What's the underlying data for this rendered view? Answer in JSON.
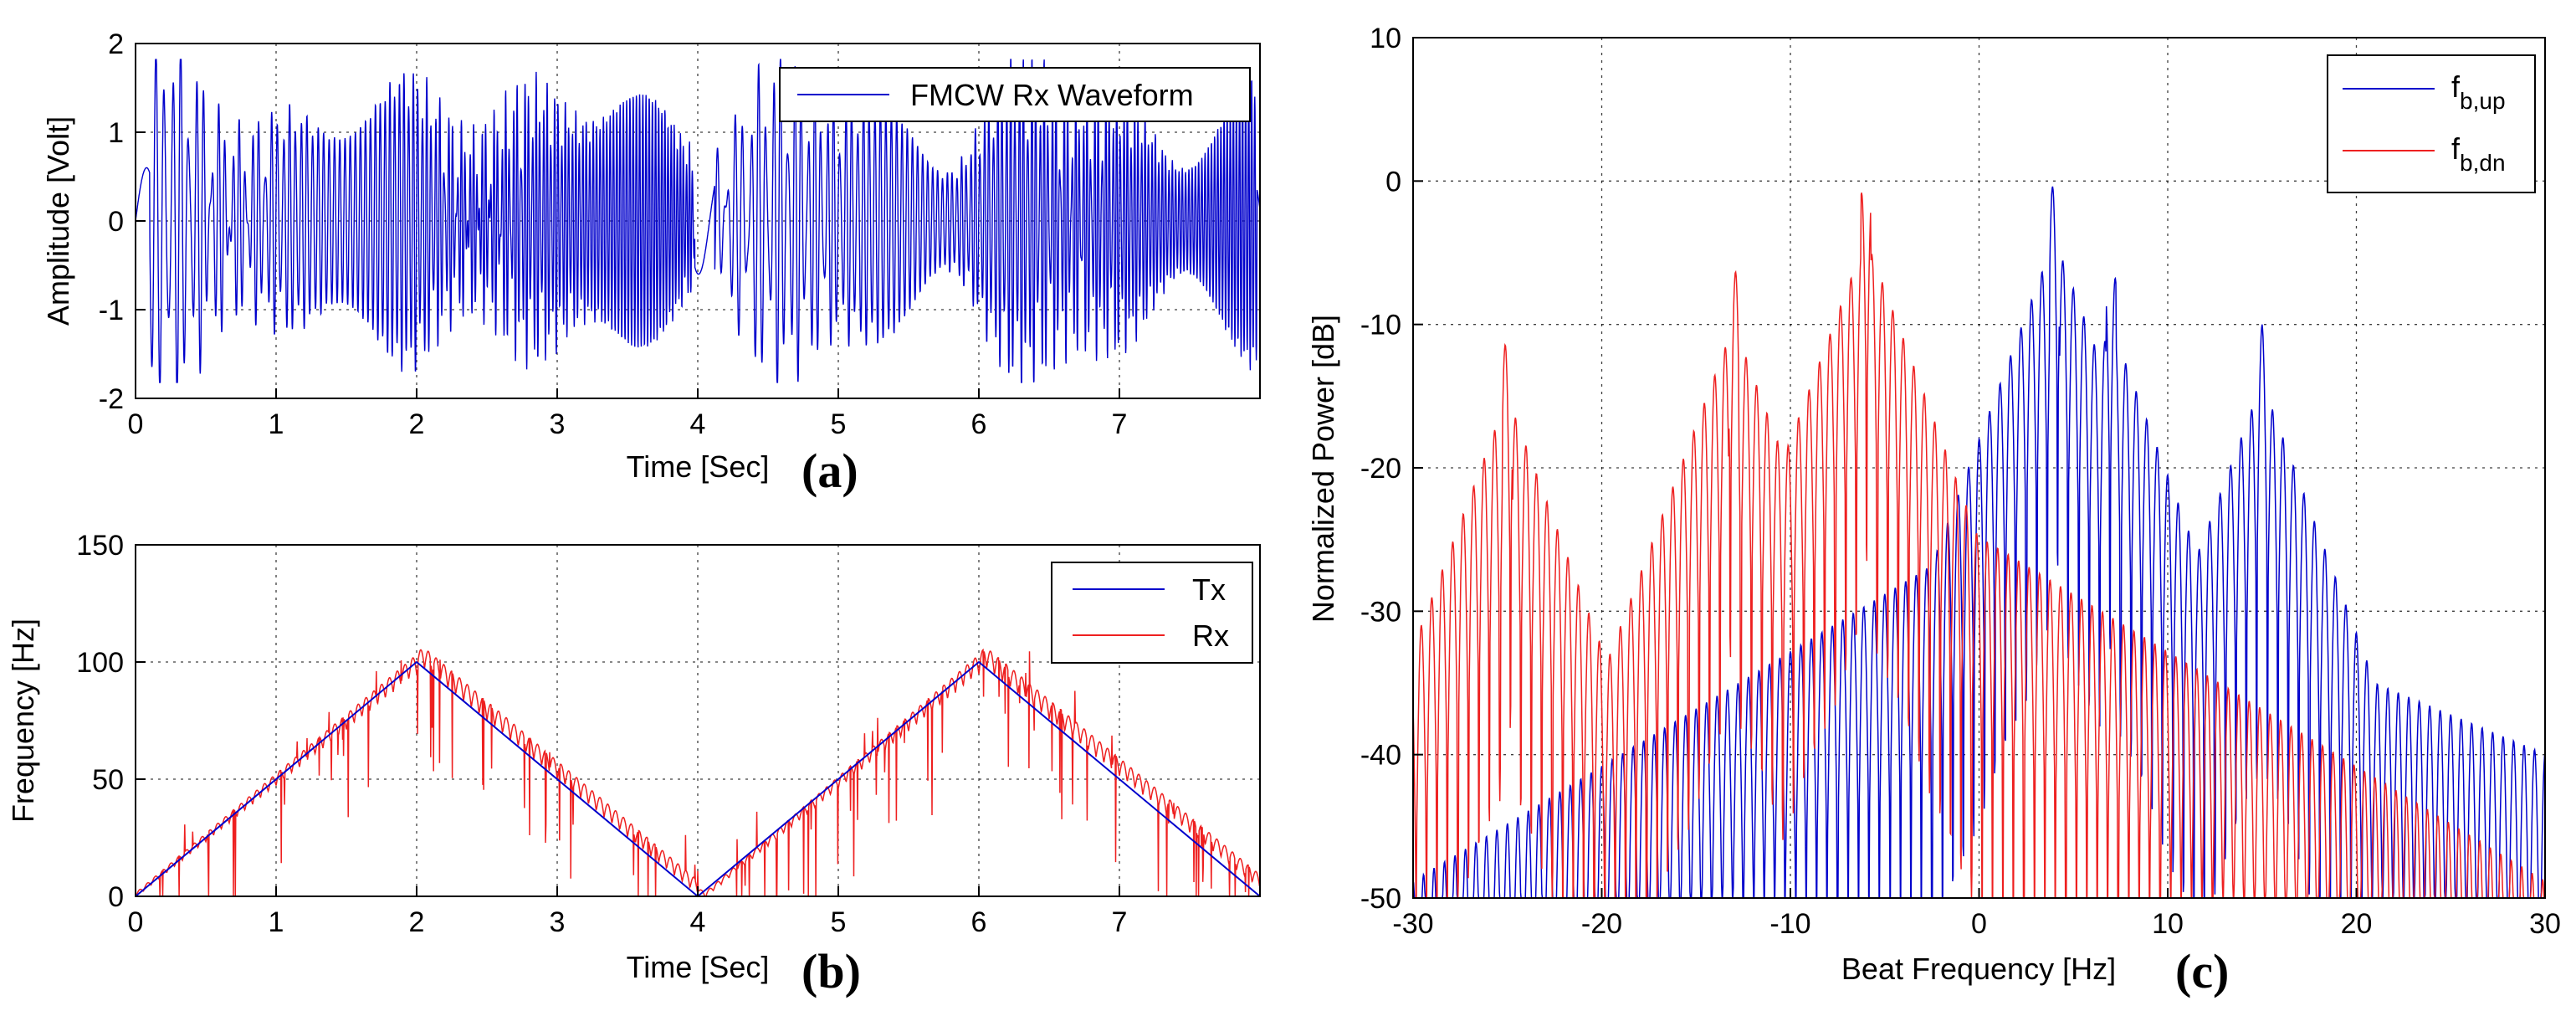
{
  "chart_data": [
    {
      "id": "a",
      "type": "line",
      "panel_label": "(a)",
      "xlabel": "Time [Sec]",
      "ylabel": "Amplitude [Volt]",
      "xlim": [
        0,
        8
      ],
      "ylim": [
        -2,
        2
      ],
      "xticks": [
        0,
        1,
        2,
        3,
        4,
        5,
        6,
        7
      ],
      "yticks": [
        -2,
        -1,
        0,
        1,
        2
      ],
      "grid": true,
      "legend_position": "top-right",
      "series": [
        {
          "name": "FMCW Rx Waveform",
          "color": "#0000cc",
          "signal": "beating FMCW chirp oscillating roughly within -1.8..1.8 V, gaps near t=0, 4 and 8 s"
        }
      ]
    },
    {
      "id": "b",
      "type": "line",
      "panel_label": "(b)",
      "xlabel": "Time [Sec]",
      "ylabel": "Frequency [Hz]",
      "xlim": [
        0,
        8
      ],
      "ylim": [
        0,
        150
      ],
      "xticks": [
        0,
        1,
        2,
        3,
        4,
        5,
        6,
        7
      ],
      "yticks": [
        0,
        50,
        100,
        150
      ],
      "grid": true,
      "legend_position": "top-right",
      "series": [
        {
          "name": "Tx",
          "color": "#0000cc",
          "x": [
            0,
            2,
            4,
            6,
            8
          ],
          "y": [
            0,
            100,
            0,
            100,
            0
          ]
        },
        {
          "name": "Rx",
          "color": "#ee2020",
          "x": [
            0,
            2.05,
            4.05,
            6.05,
            8
          ],
          "y": [
            0,
            100,
            0,
            100,
            5
          ]
        }
      ]
    },
    {
      "id": "c",
      "type": "line",
      "panel_label": "(c)",
      "xlabel": "Beat Frequency [Hz]",
      "ylabel": "Normalized Power [dB]",
      "xlim": [
        -30,
        30
      ],
      "ylim": [
        -50,
        10
      ],
      "xticks": [
        -30,
        -20,
        -10,
        0,
        10,
        20,
        30
      ],
      "yticks": [
        -50,
        -40,
        -30,
        -20,
        -10,
        0,
        10
      ],
      "grid": true,
      "legend_position": "top-right",
      "series": [
        {
          "name": "f_b,up",
          "legend_main": "f",
          "legend_sub": "b,up",
          "color": "#0000cc",
          "peaks": [
            {
              "x": 4,
              "y": 0
            },
            {
              "x": 7,
              "y": -6
            },
            {
              "x": 15,
              "y": -10
            }
          ]
        },
        {
          "name": "f_b,dn",
          "legend_main": "f",
          "legend_sub": "b,dn",
          "color": "#ee2020",
          "peaks": [
            {
              "x": -6,
              "y": 0
            },
            {
              "x": -13,
              "y": -6
            },
            {
              "x": -25,
              "y": -11
            }
          ]
        }
      ]
    }
  ]
}
